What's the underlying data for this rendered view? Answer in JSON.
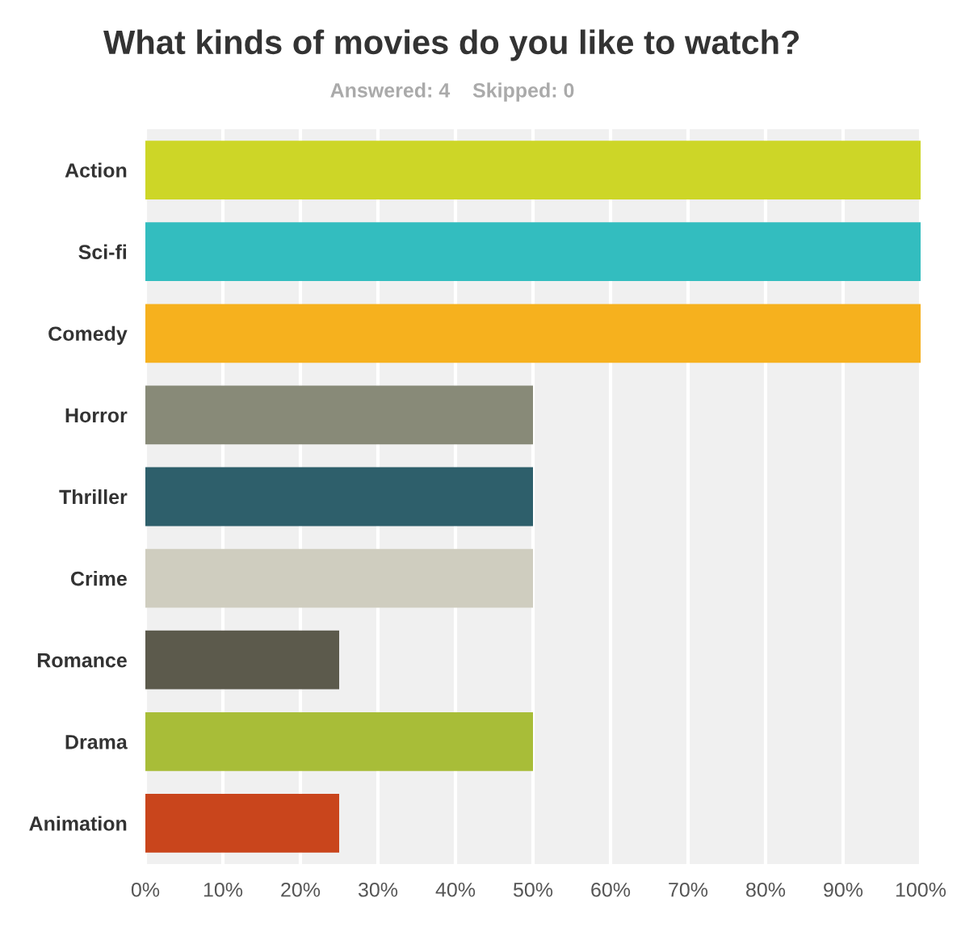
{
  "chart_data": {
    "type": "bar",
    "orientation": "horizontal",
    "title": "What kinds of movies do you like to watch?",
    "subtitle": "Answered: 4    Skipped: 0",
    "categories": [
      "Action",
      "Sci-fi",
      "Comedy",
      "Horror",
      "Thriller",
      "Crime",
      "Romance",
      "Drama",
      "Animation"
    ],
    "values": [
      100,
      100,
      100,
      50,
      50,
      50,
      25,
      50,
      25
    ],
    "colors": [
      "#cdd627",
      "#33bdbf",
      "#f6b11e",
      "#888a78",
      "#2e5f6b",
      "#cfcdbf",
      "#5c5a4c",
      "#a8bd38",
      "#c9451c"
    ],
    "xlim": [
      0,
      100
    ],
    "xticks": [
      {
        "value": 0,
        "label": "0%"
      },
      {
        "value": 10,
        "label": "10%"
      },
      {
        "value": 20,
        "label": "20%"
      },
      {
        "value": 30,
        "label": "30%"
      },
      {
        "value": 40,
        "label": "40%"
      },
      {
        "value": 50,
        "label": "50%"
      },
      {
        "value": 60,
        "label": "60%"
      },
      {
        "value": 70,
        "label": "70%"
      },
      {
        "value": 80,
        "label": "80%"
      },
      {
        "value": 90,
        "label": "90%"
      },
      {
        "value": 100,
        "label": "100%"
      }
    ],
    "grid": "x"
  }
}
